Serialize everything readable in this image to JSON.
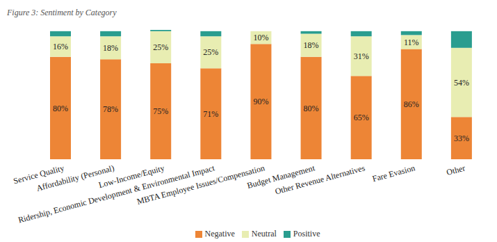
{
  "chart_data": {
    "type": "bar",
    "title": "Figure 3: Sentiment by Category",
    "categories": [
      "Service Quality",
      "Affordability (Personal)",
      "Low-Income/Equity",
      "Ridership, Economic Development & Environmental Impact",
      "MBTA Employee Issues/Compensation",
      "Budget Management",
      "Other Revenue Alternatives",
      "Fare Evasion",
      "Other"
    ],
    "series": [
      {
        "name": "Negative",
        "color": "#ed8536",
        "values": [
          80,
          78,
          75,
          71,
          90,
          80,
          65,
          86,
          33
        ],
        "value_labels": [
          "80%",
          "78%",
          "75%",
          "71%",
          "90%",
          "80%",
          "65%",
          "86%",
          "33%"
        ],
        "data_labels": true
      },
      {
        "name": "Neutral",
        "color": "#e8edb2",
        "values": [
          16,
          18,
          25,
          25,
          10,
          18,
          31,
          11,
          54
        ],
        "value_labels": [
          "16%",
          "18%",
          "25%",
          "25%",
          "10%",
          "18%",
          "31%",
          "11%",
          "54%"
        ],
        "data_labels": true
      },
      {
        "name": "Positive",
        "color": "#2a9d8f",
        "values": [
          4,
          4,
          1,
          4,
          0,
          2,
          4,
          3,
          13
        ],
        "data_labels": false
      }
    ],
    "stacked": true,
    "ylim": [
      0,
      101
    ],
    "tick_labels": "x",
    "legend": "bottom"
  }
}
